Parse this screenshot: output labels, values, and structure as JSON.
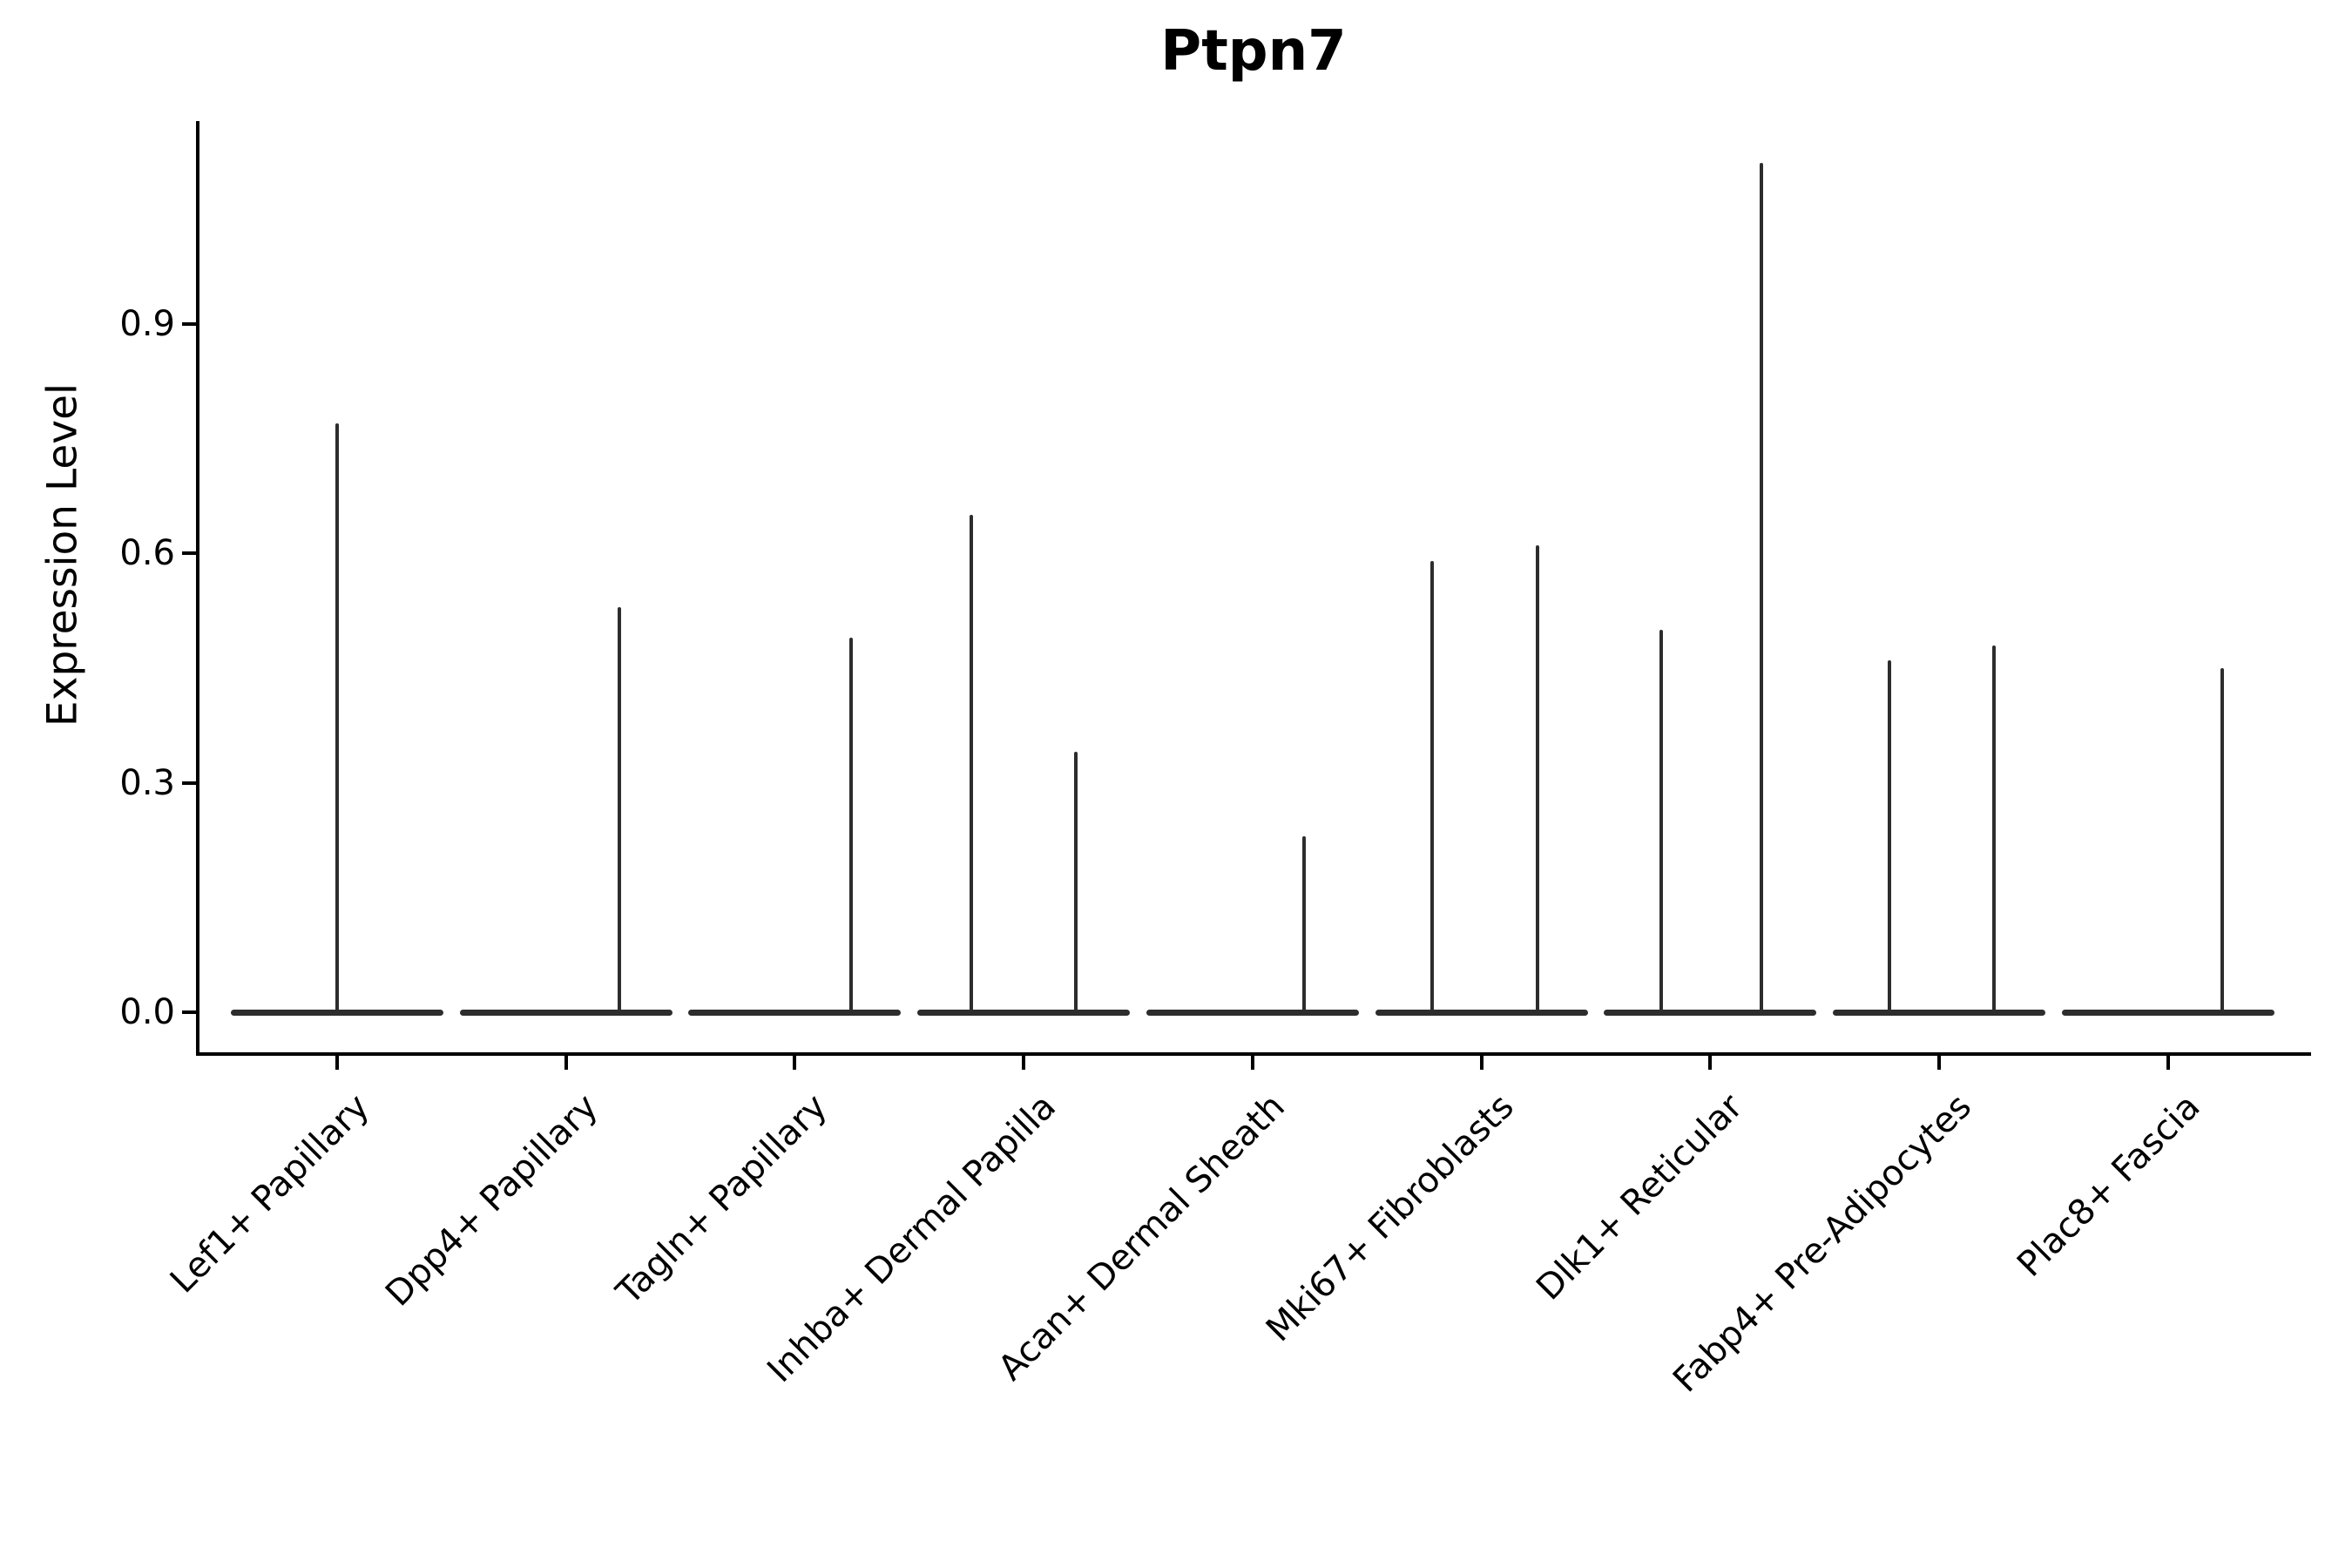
{
  "figure": {
    "title": "Ptpn7",
    "background_color": "#ffffff",
    "line_color": "#2d2d2d",
    "spine_color": "#000000"
  },
  "chart_data": {
    "type": "violin",
    "title": "Ptpn7",
    "xlabel": "",
    "ylabel": "Expression Level",
    "grid": false,
    "legend": "none",
    "ylim": [
      -0.055,
      1.165
    ],
    "ytick_labels": [
      "0.0",
      "0.3",
      "0.6",
      "0.9"
    ],
    "ytick_values": [
      0.0,
      0.3,
      0.6,
      0.9
    ],
    "categories": [
      "Lef1+ Papillary",
      "Dpp4+ Papillary",
      "Tagln+ Papillary",
      "Inhba+ Dermal Papilla",
      "Acan+ Dermal Sheath",
      "Mki67+ Fibroblasts",
      "Dlk1+ Reticular",
      "Fabp4+ Pre-Adipocytes",
      "Plac8+ Fascia"
    ],
    "description": "Each category shows a flattened violin at expression 0 with thin vertical spikes reaching the maximum expression values",
    "violins": [
      {
        "category": "Lef1+ Papillary",
        "baseline_value": 0.0,
        "max_spikes": [
          {
            "dx": 0,
            "value": 0.77
          }
        ]
      },
      {
        "category": "Dpp4+ Papillary",
        "baseline_value": 0.0,
        "max_spikes": [
          {
            "dx": 61,
            "value": 0.53
          }
        ]
      },
      {
        "category": "Tagln+ Papillary",
        "baseline_value": 0.0,
        "max_spikes": [
          {
            "dx": 65,
            "value": 0.49
          }
        ]
      },
      {
        "category": "Inhba+ Dermal Papilla",
        "baseline_value": 0.0,
        "max_spikes": [
          {
            "dx": -60,
            "value": 0.65
          },
          {
            "dx": 60,
            "value": 0.34
          }
        ]
      },
      {
        "category": "Acan+ Dermal Sheath",
        "baseline_value": 0.0,
        "max_spikes": [
          {
            "dx": 59,
            "value": 0.23
          }
        ]
      },
      {
        "category": "Mki67+ Fibroblasts",
        "baseline_value": 0.0,
        "max_spikes": [
          {
            "dx": -57,
            "value": 0.59
          },
          {
            "dx": 64,
            "value": 0.61
          }
        ]
      },
      {
        "category": "Dlk1+ Reticular",
        "baseline_value": 0.0,
        "max_spikes": [
          {
            "dx": -56,
            "value": 0.5
          },
          {
            "dx": 59,
            "value": 1.11
          }
        ]
      },
      {
        "category": "Fabp4+ Pre-Adipocytes",
        "baseline_value": 0.0,
        "max_spikes": [
          {
            "dx": -57,
            "value": 0.46
          },
          {
            "dx": 63,
            "value": 0.48
          }
        ]
      },
      {
        "category": "Plac8+ Fascia",
        "baseline_value": 0.0,
        "max_spikes": [
          {
            "dx": 62,
            "value": 0.45
          }
        ]
      }
    ]
  }
}
